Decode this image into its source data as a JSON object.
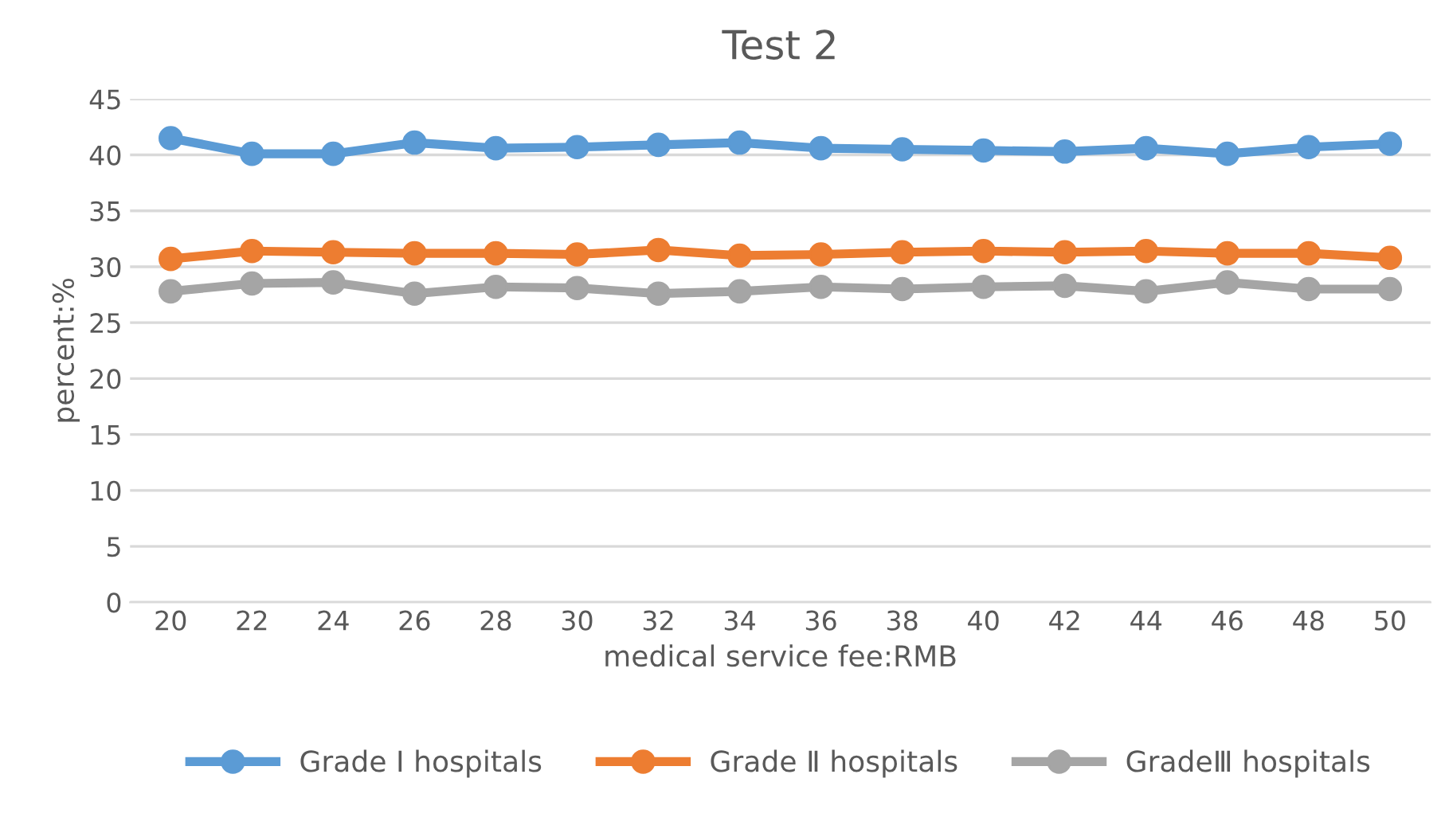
{
  "chart_data": {
    "type": "line",
    "title": "Test 2",
    "xlabel": "medical service fee:RMB",
    "ylabel": "percent:%",
    "categories": [
      "20",
      "22",
      "24",
      "26",
      "28",
      "30",
      "32",
      "34",
      "36",
      "38",
      "40",
      "42",
      "44",
      "46",
      "48",
      "50"
    ],
    "series": [
      {
        "name": "Grade Ⅰ hospitals",
        "color": "#5b9bd5",
        "values": [
          41.5,
          40.1,
          40.1,
          41.1,
          40.6,
          40.7,
          40.9,
          41.1,
          40.6,
          40.5,
          40.4,
          40.3,
          40.6,
          40.1,
          40.7,
          41.0
        ]
      },
      {
        "name": "Grade Ⅱ hospitals",
        "color": "#ed7d31",
        "values": [
          30.7,
          31.4,
          31.3,
          31.2,
          31.2,
          31.1,
          31.5,
          31.0,
          31.1,
          31.3,
          31.4,
          31.3,
          31.4,
          31.2,
          31.2,
          30.8
        ]
      },
      {
        "name": "GradeⅢ hospitals",
        "color": "#a5a5a5",
        "values": [
          27.8,
          28.5,
          28.6,
          27.6,
          28.2,
          28.1,
          27.6,
          27.8,
          28.2,
          28.0,
          28.2,
          28.3,
          27.8,
          28.6,
          28.0,
          28.0
        ]
      }
    ],
    "ylim": [
      0,
      45
    ],
    "yticks": [
      0,
      5,
      10,
      15,
      20,
      25,
      30,
      35,
      40,
      45
    ],
    "grid": "y",
    "legend": "bottom",
    "marker": "circle",
    "line_style": "solid"
  }
}
